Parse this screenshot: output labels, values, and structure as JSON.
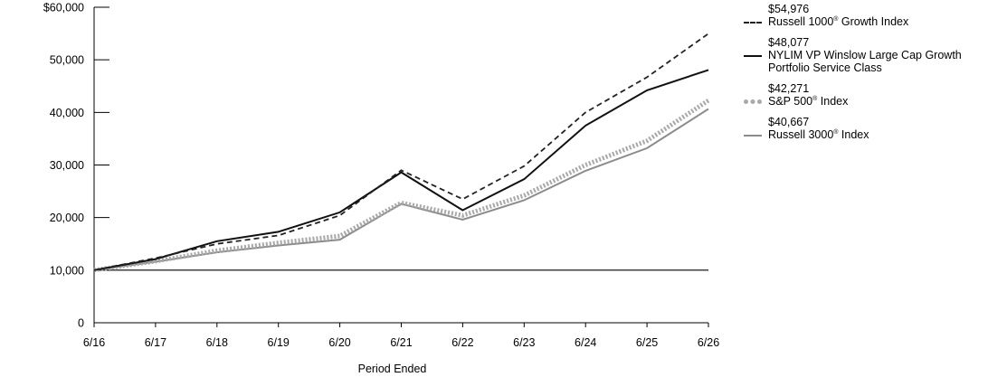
{
  "chart_data": {
    "type": "line",
    "xlabel": "Period Ended",
    "categories": [
      "6/16",
      "6/17",
      "6/18",
      "6/19",
      "6/20",
      "6/21",
      "6/22",
      "6/23",
      "6/24",
      "6/25",
      "6/26"
    ],
    "ylim": [
      0,
      60000
    ],
    "yticks": [
      0,
      10000,
      20000,
      30000,
      40000,
      50000,
      60000
    ],
    "ytick_labels": [
      "0",
      "10,000",
      "20,000",
      "30,000",
      "40,000",
      "50,000",
      "$60,000"
    ],
    "baseline": 10000,
    "grid": false,
    "legend_position": "right",
    "series": [
      {
        "name": "Russell 1000® Growth Index",
        "end_value": "$54,976",
        "color": "#222222",
        "style": "dashed",
        "values": [
          10000,
          12300,
          15000,
          16600,
          20400,
          29000,
          23500,
          29800,
          40000,
          46700,
          54976
        ]
      },
      {
        "name": "NYLIM VP Winslow Large Cap Growth Portfolio Service Class",
        "end_value": "$48,077",
        "color": "#111111",
        "style": "solid",
        "values": [
          10000,
          12100,
          15500,
          17300,
          21000,
          28600,
          21400,
          27300,
          37500,
          44200,
          48077
        ]
      },
      {
        "name": "S&P 500® Index",
        "end_value": "$42,271",
        "color": "#a8a8a8",
        "style": "dotted-thick",
        "values": [
          10000,
          11700,
          13700,
          15200,
          16500,
          22800,
          20400,
          24200,
          30000,
          34600,
          42271
        ]
      },
      {
        "name": "Russell 3000® Index",
        "end_value": "$40,667",
        "color": "#8c8c8c",
        "style": "solid",
        "values": [
          10000,
          11600,
          13400,
          14700,
          15800,
          22600,
          19600,
          23300,
          28900,
          33200,
          40667
        ]
      }
    ]
  }
}
